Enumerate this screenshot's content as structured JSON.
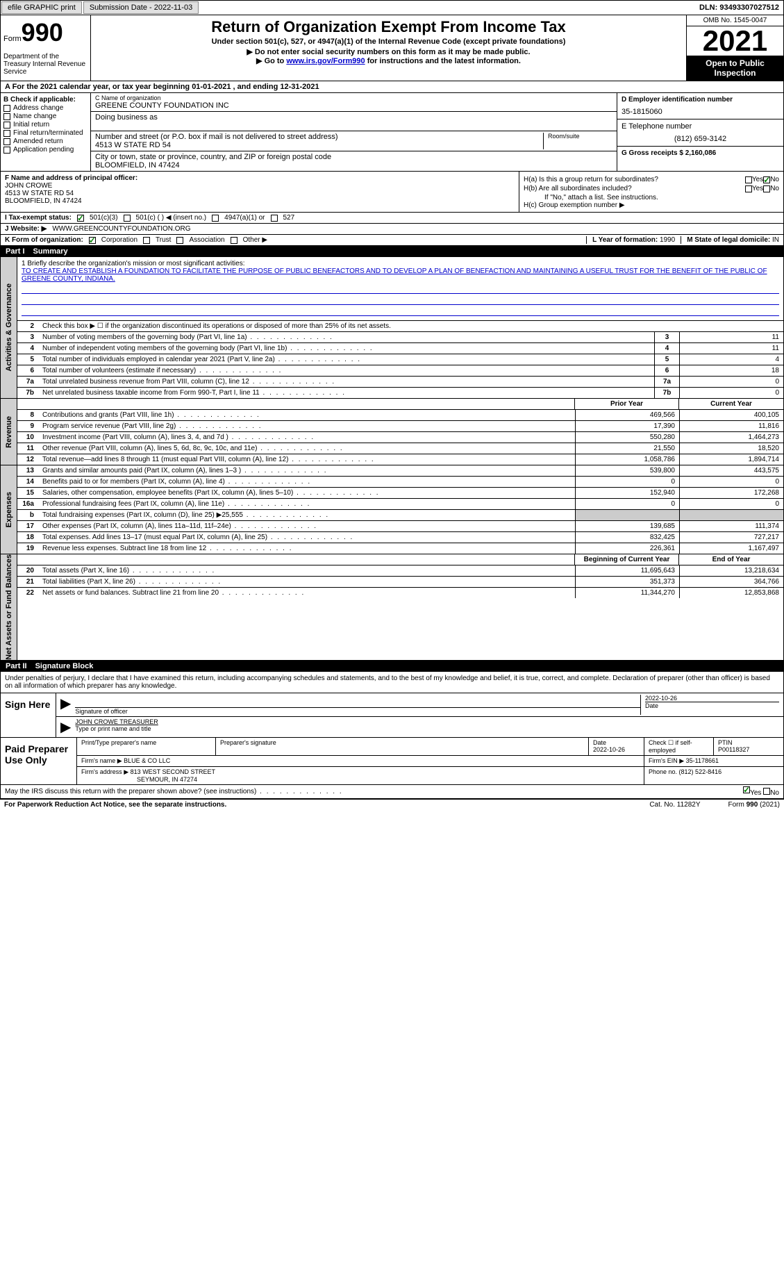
{
  "topbar": {
    "efile": "efile GRAPHIC print",
    "submission_label": "Submission Date - 2022-11-03",
    "dln": "DLN: 93493307027512"
  },
  "header": {
    "form_label": "Form",
    "form_number": "990",
    "dept": "Department of the Treasury\nInternal Revenue Service",
    "title": "Return of Organization Exempt From Income Tax",
    "subtitle": "Under section 501(c), 527, or 4947(a)(1) of the Internal Revenue Code (except private foundations)",
    "note1": "▶ Do not enter social security numbers on this form as it may be made public.",
    "note2_prefix": "▶ Go to ",
    "note2_link": "www.irs.gov/Form990",
    "note2_suffix": " for instructions and the latest information.",
    "omb": "OMB No. 1545-0047",
    "year": "2021",
    "inspect": "Open to Public Inspection"
  },
  "cal_year": "A For the 2021 calendar year, or tax year beginning 01-01-2021   , and ending 12-31-2021",
  "block_b": {
    "label": "B Check if applicable:",
    "items": [
      "Address change",
      "Name change",
      "Initial return",
      "Final return/terminated",
      "Amended return",
      "Application pending"
    ]
  },
  "block_c": {
    "name_label": "C Name of organization",
    "name": "GREENE COUNTY FOUNDATION INC",
    "dba_label": "Doing business as",
    "street_label": "Number and street (or P.O. box if mail is not delivered to street address)",
    "street": "4513 W STATE RD 54",
    "room_label": "Room/suite",
    "city_label": "City or town, state or province, country, and ZIP or foreign postal code",
    "city": "BLOOMFIELD, IN  47424"
  },
  "block_d": {
    "ein_label": "D Employer identification number",
    "ein": "35-1815060",
    "phone_label": "E Telephone number",
    "phone": "(812) 659-3142",
    "gross_label": "G Gross receipts $ ",
    "gross": "2,160,086"
  },
  "block_f": {
    "label": "F Name and address of principal officer:",
    "name": "JOHN CROWE",
    "street": "4513 W STATE RD 54",
    "city": "BLOOMFIELD, IN  47424"
  },
  "block_h": {
    "a_label": "H(a)  Is this a group return for subordinates?",
    "b_label": "H(b)  Are all subordinates included?",
    "b_note": "If \"No,\" attach a list. See instructions.",
    "c_label": "H(c)  Group exemption number ▶"
  },
  "row_i": {
    "label": "I  Tax-exempt status:",
    "opt1": "501(c)(3)",
    "opt2": "501(c) (  ) ◀ (insert no.)",
    "opt3": "4947(a)(1) or",
    "opt4": "527"
  },
  "row_j": {
    "label": "J  Website: ▶",
    "value": "WWW.GREENCOUNTYFOUNDATION.ORG"
  },
  "row_k": {
    "label": "K Form of organization:",
    "opts": [
      "Corporation",
      "Trust",
      "Association",
      "Other ▶"
    ],
    "l_label": "L Year of formation: ",
    "l_val": "1990",
    "m_label": "M State of legal domicile: ",
    "m_val": "IN"
  },
  "part1": {
    "num": "Part I",
    "title": "Summary"
  },
  "summary": {
    "line1_label": "1  Briefly describe the organization's mission or most significant activities:",
    "line1_text": "TO CREATE AND ESTABLISH A FOUNDATION TO FACILITATE THE PURPOSE OF PUBLIC BENEFACTORS AND TO DEVELOP A PLAN OF BENEFACTION AND MAINTAINING A USEFUL TRUST FOR THE BENEFIT OF THE PUBLIC OF GREENE COUNTY, INDIANA.",
    "line2": "Check this box ▶ ☐ if the organization discontinued its operations or disposed of more than 25% of its net assets."
  },
  "gov_rows": [
    {
      "n": "3",
      "d": "Number of voting members of the governing body (Part VI, line 1a)",
      "b": "3",
      "v": "11"
    },
    {
      "n": "4",
      "d": "Number of independent voting members of the governing body (Part VI, line 1b)",
      "b": "4",
      "v": "11"
    },
    {
      "n": "5",
      "d": "Total number of individuals employed in calendar year 2021 (Part V, line 2a)",
      "b": "5",
      "v": "4"
    },
    {
      "n": "6",
      "d": "Total number of volunteers (estimate if necessary)",
      "b": "6",
      "v": "18"
    },
    {
      "n": "7a",
      "d": "Total unrelated business revenue from Part VIII, column (C), line 12",
      "b": "7a",
      "v": "0"
    },
    {
      "n": "7b",
      "d": "Net unrelated business taxable income from Form 990-T, Part I, line 11",
      "b": "7b",
      "v": "0"
    }
  ],
  "rev_hdr": {
    "prior": "Prior Year",
    "current": "Current Year"
  },
  "rev_rows": [
    {
      "n": "8",
      "d": "Contributions and grants (Part VIII, line 1h)",
      "p": "469,566",
      "c": "400,105"
    },
    {
      "n": "9",
      "d": "Program service revenue (Part VIII, line 2g)",
      "p": "17,390",
      "c": "11,816"
    },
    {
      "n": "10",
      "d": "Investment income (Part VIII, column (A), lines 3, 4, and 7d )",
      "p": "550,280",
      "c": "1,464,273"
    },
    {
      "n": "11",
      "d": "Other revenue (Part VIII, column (A), lines 5, 6d, 8c, 9c, 10c, and 11e)",
      "p": "21,550",
      "c": "18,520"
    },
    {
      "n": "12",
      "d": "Total revenue—add lines 8 through 11 (must equal Part VIII, column (A), line 12)",
      "p": "1,058,786",
      "c": "1,894,714"
    }
  ],
  "exp_rows": [
    {
      "n": "13",
      "d": "Grants and similar amounts paid (Part IX, column (A), lines 1–3 )",
      "p": "539,800",
      "c": "443,575"
    },
    {
      "n": "14",
      "d": "Benefits paid to or for members (Part IX, column (A), line 4)",
      "p": "0",
      "c": "0"
    },
    {
      "n": "15",
      "d": "Salaries, other compensation, employee benefits (Part IX, column (A), lines 5–10)",
      "p": "152,940",
      "c": "172,268"
    },
    {
      "n": "16a",
      "d": "Professional fundraising fees (Part IX, column (A), line 11e)",
      "p": "0",
      "c": "0"
    },
    {
      "n": "b",
      "d": "Total fundraising expenses (Part IX, column (D), line 25) ▶25,555",
      "p": "",
      "c": "",
      "shaded": true
    },
    {
      "n": "17",
      "d": "Other expenses (Part IX, column (A), lines 11a–11d, 11f–24e)",
      "p": "139,685",
      "c": "111,374"
    },
    {
      "n": "18",
      "d": "Total expenses. Add lines 13–17 (must equal Part IX, column (A), line 25)",
      "p": "832,425",
      "c": "727,217"
    },
    {
      "n": "19",
      "d": "Revenue less expenses. Subtract line 18 from line 12",
      "p": "226,361",
      "c": "1,167,497"
    }
  ],
  "net_hdr": {
    "prior": "Beginning of Current Year",
    "current": "End of Year"
  },
  "net_rows": [
    {
      "n": "20",
      "d": "Total assets (Part X, line 16)",
      "p": "11,695,643",
      "c": "13,218,634"
    },
    {
      "n": "21",
      "d": "Total liabilities (Part X, line 26)",
      "p": "351,373",
      "c": "364,766"
    },
    {
      "n": "22",
      "d": "Net assets or fund balances. Subtract line 21 from line 20",
      "p": "11,344,270",
      "c": "12,853,868"
    }
  ],
  "part2": {
    "num": "Part II",
    "title": "Signature Block"
  },
  "sig_decl": "Under penalties of perjury, I declare that I have examined this return, including accompanying schedules and statements, and to the best of my knowledge and belief, it is true, correct, and complete. Declaration of preparer (other than officer) is based on all information of which preparer has any knowledge.",
  "sign": {
    "here": "Sign Here",
    "sig_label": "Signature of officer",
    "date": "2022-10-26",
    "date_label": "Date",
    "name": "JOHN CROWE TREASURER",
    "name_label": "Type or print name and title"
  },
  "prep": {
    "label": "Paid Preparer Use Only",
    "name_label": "Print/Type preparer's name",
    "sig_label": "Preparer's signature",
    "date_label": "Date",
    "date": "2022-10-26",
    "check_label": "Check ☐ if self-employed",
    "ptin_label": "PTIN",
    "ptin": "P00118327",
    "firm_name_label": "Firm's name    ▶",
    "firm_name": "BLUE & CO LLC",
    "firm_ein_label": "Firm's EIN ▶",
    "firm_ein": "35-1178661",
    "firm_addr_label": "Firm's address ▶",
    "firm_addr1": "813 WEST SECOND STREET",
    "firm_addr2": "SEYMOUR, IN  47274",
    "phone_label": "Phone no. ",
    "phone": "(812) 522-8416"
  },
  "discuss": "May the IRS discuss this return with the preparer shown above? (see instructions)",
  "footer": {
    "paperwork": "For Paperwork Reduction Act Notice, see the separate instructions.",
    "cat": "Cat. No. 11282Y",
    "form": "Form 990 (2021)"
  }
}
